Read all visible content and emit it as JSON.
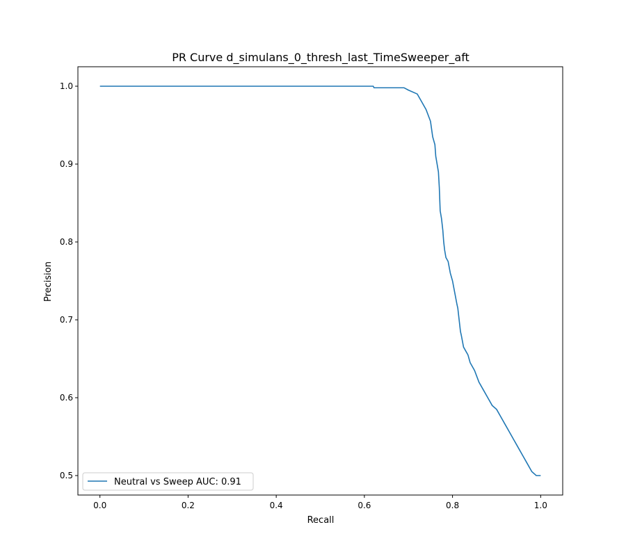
{
  "chart_data": {
    "type": "line",
    "title": "PR Curve d_simulans_0_thresh_last_TimeSweeper_aft",
    "xlabel": "Recall",
    "ylabel": "Precision",
    "xlim": [
      -0.05,
      1.05
    ],
    "ylim": [
      0.475,
      1.025
    ],
    "xticks": [
      0.0,
      0.2,
      0.4,
      0.6,
      0.8,
      1.0
    ],
    "xtick_labels": [
      "0.0",
      "0.2",
      "0.4",
      "0.6",
      "0.8",
      "1.0"
    ],
    "yticks": [
      0.5,
      0.6,
      0.7,
      0.8,
      0.9,
      1.0
    ],
    "ytick_labels": [
      "0.5",
      "0.6",
      "0.7",
      "0.8",
      "0.9",
      "1.0"
    ],
    "grid": false,
    "legend_position": "lower-left",
    "series": [
      {
        "name": "Neutral vs Sweep AUC: 0.91",
        "color": "#1f77b4",
        "x": [
          0.0,
          0.62,
          0.622,
          0.69,
          0.7,
          0.72,
          0.73,
          0.74,
          0.75,
          0.755,
          0.76,
          0.762,
          0.765,
          0.768,
          0.77,
          0.772,
          0.775,
          0.778,
          0.78,
          0.782,
          0.785,
          0.79,
          0.795,
          0.8,
          0.805,
          0.81,
          0.812,
          0.815,
          0.818,
          0.82,
          0.825,
          0.83,
          0.835,
          0.84,
          0.85,
          0.86,
          0.87,
          0.88,
          0.89,
          0.9,
          0.91,
          0.92,
          0.93,
          0.94,
          0.95,
          0.96,
          0.97,
          0.98,
          0.99,
          1.0
        ],
        "y": [
          1.0,
          1.0,
          0.998,
          0.998,
          0.995,
          0.99,
          0.98,
          0.97,
          0.955,
          0.935,
          0.925,
          0.91,
          0.9,
          0.89,
          0.87,
          0.84,
          0.83,
          0.815,
          0.8,
          0.79,
          0.78,
          0.775,
          0.76,
          0.75,
          0.735,
          0.72,
          0.715,
          0.7,
          0.685,
          0.68,
          0.665,
          0.66,
          0.655,
          0.645,
          0.635,
          0.62,
          0.61,
          0.6,
          0.59,
          0.585,
          0.575,
          0.565,
          0.555,
          0.545,
          0.535,
          0.525,
          0.515,
          0.505,
          0.5,
          0.5
        ]
      }
    ]
  }
}
